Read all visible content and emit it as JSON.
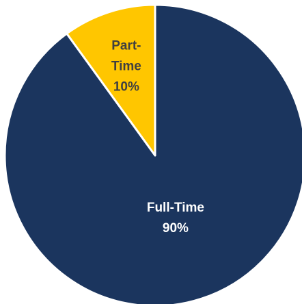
{
  "chart_data": {
    "type": "pie",
    "slices": [
      {
        "label": "Full-Time",
        "percent_text": "90%",
        "value": 90,
        "color": "#1b355e",
        "label_color": "#ffffff"
      },
      {
        "label": "Part-Time",
        "percent_text": "10%",
        "value": 10,
        "color": "#ffc600",
        "label_color": "#404040"
      }
    ],
    "start_angle_deg": 0,
    "direction": "clockwise",
    "slice_border_color": "#ffffff",
    "title": "",
    "legend": "none"
  }
}
